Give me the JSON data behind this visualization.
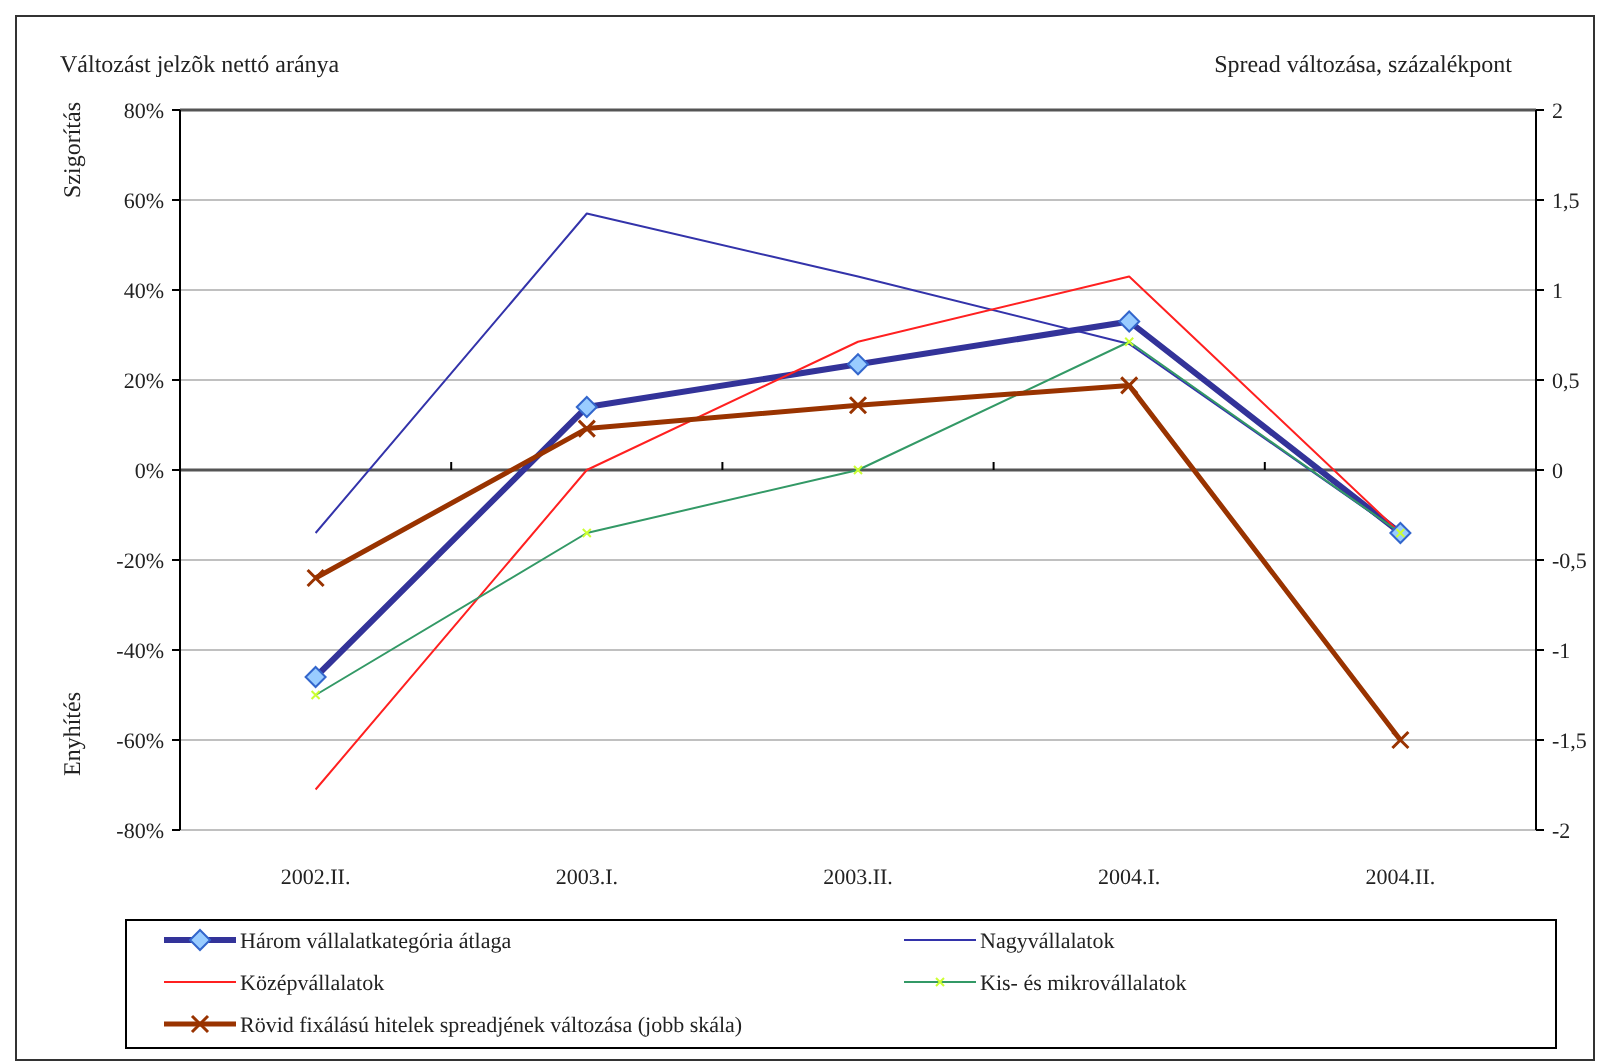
{
  "chart_data": {
    "type": "line",
    "title": "Változást jelzõk nettó aránya",
    "y2label": "Spread változása, százalékpont",
    "annotations": [
      "Szigorítás",
      "Enyhítés"
    ],
    "categories": [
      "2002.II.",
      "2003.I.",
      "2003.II.",
      "2004.I.",
      "2004.II."
    ],
    "series": [
      {
        "name": "Három vállalatkategória átlaga",
        "color": "#333399",
        "marker": "diamond",
        "values": [
          -46,
          14,
          23.5,
          33,
          -14
        ]
      },
      {
        "name": "Nagyvállalatok",
        "color": "#3333aa",
        "marker": "none",
        "values": [
          -14,
          57,
          43,
          28,
          -14
        ]
      },
      {
        "name": "Középvállalatok",
        "color": "#ff2020",
        "marker": "none",
        "values": [
          -71,
          0,
          28.5,
          43,
          -14
        ]
      },
      {
        "name": "Kis- és mikrovállalatok",
        "color": "#339966",
        "marker": "cross",
        "values": [
          -50,
          -14,
          0,
          28.5,
          -14
        ]
      },
      {
        "name": "Rövid fixálású hitelek spreadjének változása (jobb skála)",
        "color": "#993300",
        "marker": "cross",
        "axis": "y2",
        "values": [
          -0.6,
          0.23,
          0.36,
          0.47,
          -1.5
        ]
      }
    ],
    "ylim": [
      -80,
      80
    ],
    "yticks": [
      {
        "value": -80,
        "label": "-80%"
      },
      {
        "value": -60,
        "label": "-60%"
      },
      {
        "value": -40,
        "label": "-40%"
      },
      {
        "value": -20,
        "label": "-20%"
      },
      {
        "value": 0,
        "label": "0%"
      },
      {
        "value": 20,
        "label": "20%"
      },
      {
        "value": 40,
        "label": "40%"
      },
      {
        "value": 60,
        "label": "60%"
      },
      {
        "value": 80,
        "label": "80%"
      }
    ],
    "y2lim": [
      -2,
      2
    ],
    "y2ticks": [
      -2,
      {
        "value": -1.5,
        "label": "-1,5"
      },
      -1,
      {
        "value": -0.5,
        "label": "-0,5"
      },
      0,
      {
        "value": 0.5,
        "label": "0,5"
      },
      1,
      {
        "value": 1.5,
        "label": "1,5"
      },
      2
    ],
    "grid": "y",
    "legend": "bottom"
  }
}
